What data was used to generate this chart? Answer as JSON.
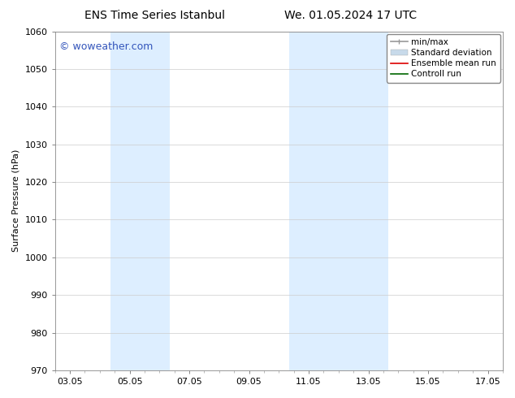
{
  "title_left": "ENS Time Series Istanbul",
  "title_right": "We. 01.05.2024 17 UTC",
  "ylabel": "Surface Pressure (hPa)",
  "ylim": [
    970,
    1060
  ],
  "yticks": [
    970,
    980,
    990,
    1000,
    1010,
    1020,
    1030,
    1040,
    1050,
    1060
  ],
  "xtick_labels": [
    "03.05",
    "05.05",
    "07.05",
    "09.05",
    "11.05",
    "13.05",
    "15.05",
    "17.05"
  ],
  "xtick_positions": [
    0,
    2,
    4,
    6,
    8,
    10,
    12,
    14
  ],
  "xlim": [
    -0.5,
    14.5
  ],
  "shaded_bands": [
    {
      "x_start": 1.35,
      "x_end": 2.0,
      "color": "#ddeeff"
    },
    {
      "x_start": 2.0,
      "x_end": 3.35,
      "color": "#ddeeff"
    },
    {
      "x_start": 7.35,
      "x_end": 8.65,
      "color": "#ddeeff"
    },
    {
      "x_start": 8.65,
      "x_end": 10.65,
      "color": "#ddeeff"
    }
  ],
  "watermark_text": "© woweather.com",
  "watermark_color": "#3355bb",
  "watermark_fontsize": 9,
  "legend_entries": [
    {
      "label": "min/max",
      "color": "#999999",
      "linestyle": "-",
      "linewidth": 1.2
    },
    {
      "label": "Standard deviation",
      "color": "#c8daea",
      "linestyle": "-",
      "linewidth": 5
    },
    {
      "label": "Ensemble mean run",
      "color": "#dd0000",
      "linestyle": "-",
      "linewidth": 1.2
    },
    {
      "label": "Controll run",
      "color": "#006600",
      "linestyle": "-",
      "linewidth": 1.2
    }
  ],
  "bg_color": "#ffffff",
  "plot_bg_color": "#ffffff",
  "grid_color": "#cccccc",
  "title_fontsize": 10,
  "axis_label_fontsize": 8,
  "tick_fontsize": 8,
  "legend_fontsize": 7.5
}
